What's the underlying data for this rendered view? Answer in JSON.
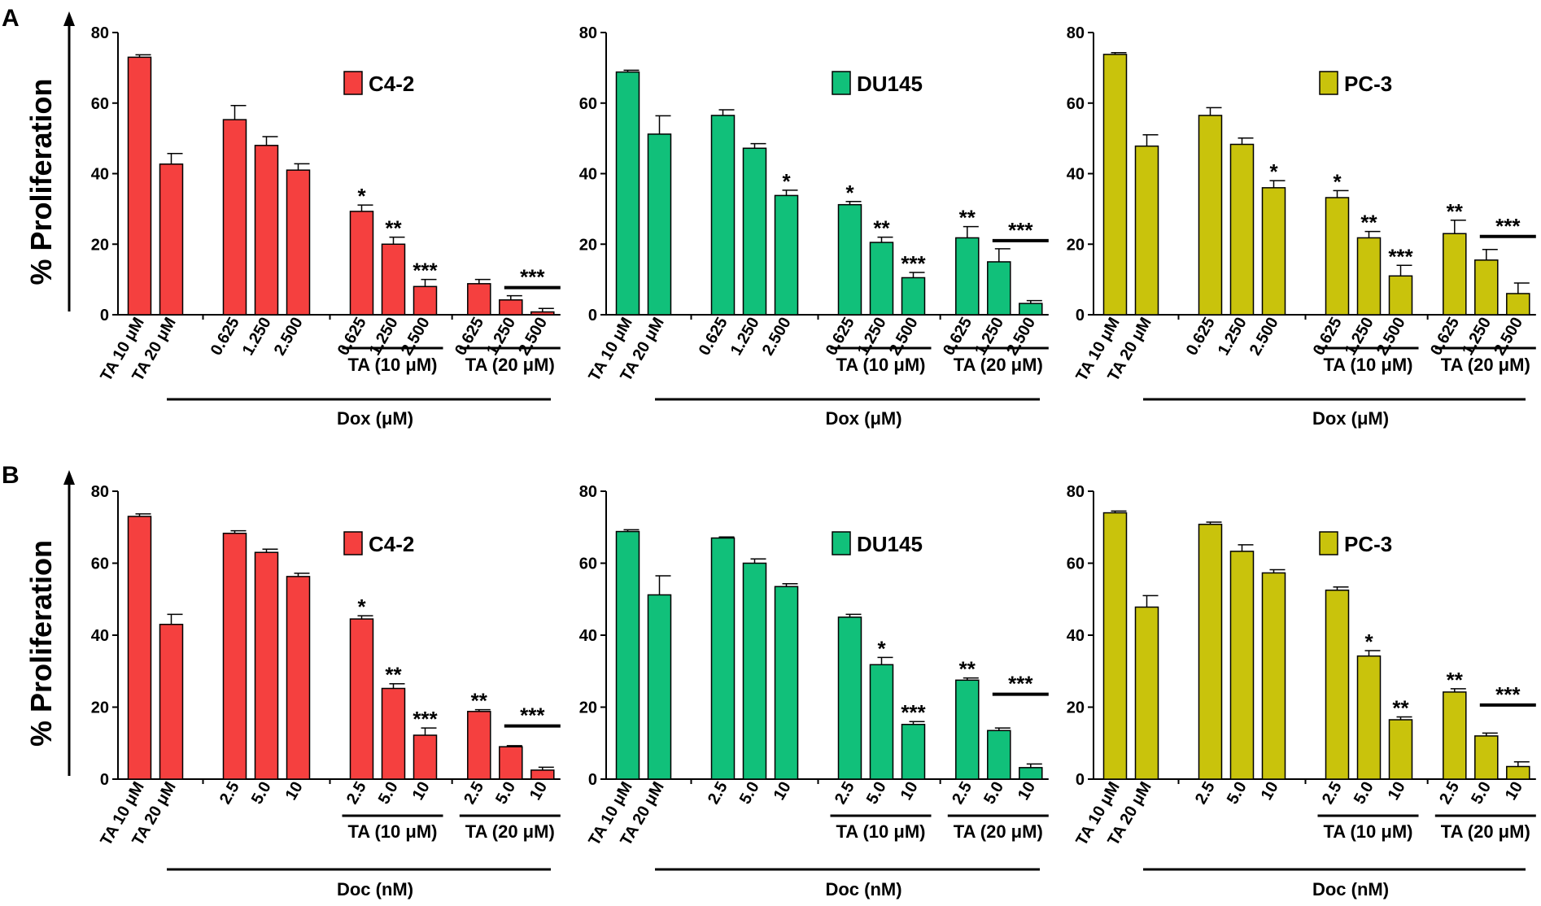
{
  "figure": {
    "rows": [
      {
        "panel": "A",
        "ylabel": "% Proliferation"
      },
      {
        "panel": "B",
        "ylabel": "% Proliferation"
      }
    ]
  },
  "chart_data": [
    {
      "type": "bar",
      "row": 0,
      "col": 0,
      "legend": "C4-2",
      "color": "#f5403f",
      "ylim": [
        0,
        80
      ],
      "yticks": [
        "0",
        "20",
        "40",
        "60",
        "80"
      ],
      "categories": [
        "TA 10 μM",
        "TA 20 μM",
        "0.625",
        "1.250",
        "2.500",
        "0.625",
        "1.250",
        "2.500",
        "0.625",
        "1.250",
        "2.500"
      ],
      "values": [
        73,
        42.7,
        55.3,
        48,
        41,
        29.3,
        20,
        8,
        8.8,
        4.2,
        0.8
      ],
      "errors": [
        0.7,
        3,
        4,
        2.5,
        1.8,
        1.8,
        2,
        2,
        1.2,
        1.2,
        1
      ],
      "annotations": [
        "",
        "",
        "",
        "",
        "",
        "*",
        "**",
        "***",
        "",
        "",
        ""
      ],
      "group_labels": [
        "TA (10 μM)",
        "TA (20 μM)"
      ],
      "drug_label": "Dox (μM)",
      "bracket_label": "***"
    },
    {
      "type": "bar",
      "row": 0,
      "col": 1,
      "legend": "DU145",
      "color": "#11c07a",
      "ylim": [
        0,
        80
      ],
      "yticks": [
        "0",
        "20",
        "40",
        "60",
        "80"
      ],
      "categories": [
        "TA 10 μM",
        "TA 20 μM",
        "0.625",
        "1.250",
        "2.500",
        "0.625",
        "1.250",
        "2.500",
        "0.625",
        "1.250",
        "2.500"
      ],
      "values": [
        68.8,
        51.2,
        56.5,
        47.2,
        33.8,
        31.2,
        20.5,
        10.5,
        21.8,
        15,
        3.2
      ],
      "errors": [
        0.5,
        5.2,
        1.6,
        1.3,
        1.5,
        0.9,
        1.5,
        1.5,
        3.2,
        3.7,
        0.8
      ],
      "annotations": [
        "",
        "",
        "",
        "",
        "*",
        "*",
        "**",
        "***",
        "**",
        "",
        ""
      ],
      "group_labels": [
        "TA (10 μM)",
        "TA (20 μM)"
      ],
      "drug_label": "Dox (μM)",
      "bracket_label": "***"
    },
    {
      "type": "bar",
      "row": 0,
      "col": 2,
      "legend": "PC-3",
      "color": "#c9c30c",
      "ylim": [
        0,
        80
      ],
      "yticks": [
        "0",
        "20",
        "40",
        "60",
        "80"
      ],
      "categories": [
        "TA 10 μM",
        "TA 20 μM",
        "0.625",
        "1.250",
        "2.500",
        "0.625",
        "1.250",
        "2.500",
        "0.625",
        "1.250",
        "2.500"
      ],
      "values": [
        73.8,
        47.8,
        56.5,
        48.3,
        36,
        33.2,
        21.8,
        11,
        23,
        15.5,
        6
      ],
      "errors": [
        0.5,
        3.2,
        2.2,
        1.8,
        2,
        2,
        1.8,
        3,
        3.8,
        3,
        3
      ],
      "annotations": [
        "",
        "",
        "",
        "",
        "*",
        "*",
        "**",
        "***",
        "**",
        "",
        ""
      ],
      "group_labels": [
        "TA (10 μM)",
        "TA (20 μM)"
      ],
      "drug_label": "Dox (μM)",
      "bracket_label": "***"
    },
    {
      "type": "bar",
      "row": 1,
      "col": 0,
      "legend": "C4-2",
      "color": "#f5403f",
      "ylim": [
        0,
        80
      ],
      "yticks": [
        "0",
        "20",
        "40",
        "60",
        "80"
      ],
      "categories": [
        "TA 10 μM",
        "TA 20 μM",
        "2.5",
        "5.0",
        "10",
        "2.5",
        "5.0",
        "10",
        "2.5",
        "5.0",
        "10"
      ],
      "values": [
        73,
        43,
        68.3,
        63,
        56.3,
        44.5,
        25.2,
        12.2,
        18.8,
        9,
        2.5
      ],
      "errors": [
        0.7,
        2.8,
        0.7,
        0.9,
        0.9,
        0.9,
        1.3,
        2,
        0.5,
        0.3,
        0.8
      ],
      "annotations": [
        "",
        "",
        "",
        "",
        "",
        "*",
        "**",
        "***",
        "**",
        "",
        ""
      ],
      "group_labels": [
        "TA (10 μM)",
        "TA (20 μM)"
      ],
      "drug_label": "Doc (nM)",
      "bracket_label": "***"
    },
    {
      "type": "bar",
      "row": 1,
      "col": 1,
      "legend": "DU145",
      "color": "#11c07a",
      "ylim": [
        0,
        80
      ],
      "yticks": [
        "0",
        "20",
        "40",
        "60",
        "80"
      ],
      "categories": [
        "TA 10 μM",
        "TA 20 μM",
        "2.5",
        "5.0",
        "10",
        "2.5",
        "5.0",
        "10",
        "2.5",
        "5.0",
        "10"
      ],
      "values": [
        68.8,
        51.2,
        67,
        60,
        53.5,
        45,
        31.8,
        15.2,
        27.5,
        13.5,
        3.2
      ],
      "errors": [
        0.5,
        5.3,
        0.3,
        1.2,
        0.8,
        0.8,
        2,
        0.8,
        0.6,
        0.7,
        1
      ],
      "annotations": [
        "",
        "",
        "",
        "",
        "",
        "",
        "*",
        "***",
        "**",
        "",
        ""
      ],
      "group_labels": [
        "TA (10 μM)",
        "TA (20 μM)"
      ],
      "drug_label": "Doc (nM)",
      "bracket_label": "***"
    },
    {
      "type": "bar",
      "row": 1,
      "col": 2,
      "legend": "PC-3",
      "color": "#c9c30c",
      "ylim": [
        0,
        80
      ],
      "yticks": [
        "0",
        "20",
        "40",
        "60",
        "80"
      ],
      "categories": [
        "TA 10 μM",
        "TA 20 μM",
        "2.5",
        "5.0",
        "10",
        "2.5",
        "5.0",
        "10",
        "2.5",
        "5.0",
        "10"
      ],
      "values": [
        74,
        47.8,
        70.8,
        63.3,
        57.3,
        52.5,
        34.2,
        16.5,
        24.2,
        12,
        3.5
      ],
      "errors": [
        0.5,
        3.2,
        0.6,
        1.8,
        0.9,
        0.9,
        1.5,
        0.8,
        0.9,
        0.8,
        1.3
      ],
      "annotations": [
        "",
        "",
        "",
        "",
        "",
        "",
        "*",
        "**",
        "**",
        "",
        ""
      ],
      "group_labels": [
        "TA (10 μM)",
        "TA (20 μM)"
      ],
      "drug_label": "Doc (nM)",
      "bracket_label": "***"
    }
  ]
}
